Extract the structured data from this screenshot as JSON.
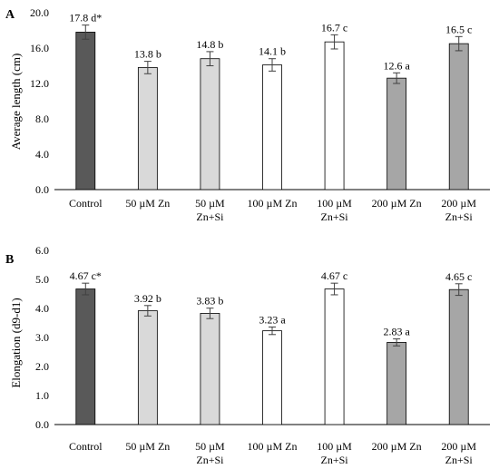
{
  "chart_data": [
    {
      "panel": "A",
      "type": "bar",
      "ylabel": "Average length (cm)",
      "ylim": [
        0,
        20
      ],
      "yticks": [
        "0.0",
        "4.0",
        "8.0",
        "12.0",
        "16.0",
        "20.0"
      ],
      "ytick_values": [
        0,
        4,
        8,
        12,
        16,
        20
      ],
      "categories": [
        [
          "Control"
        ],
        [
          "50 µM Zn"
        ],
        [
          "50 µM",
          "Zn+Si"
        ],
        [
          "100 µM Zn"
        ],
        [
          "100 µM",
          "Zn+Si"
        ],
        [
          "200 µM Zn"
        ],
        [
          "200 µM",
          "Zn+Si"
        ]
      ],
      "values": [
        17.8,
        13.8,
        14.8,
        14.1,
        16.7,
        12.6,
        16.5
      ],
      "errors": [
        0.8,
        0.7,
        0.8,
        0.7,
        0.8,
        0.6,
        0.8
      ],
      "labels": [
        "17.8 d*",
        "13.8 b",
        "14.8 b",
        "14.1 b",
        "16.7 c",
        "12.6 a",
        "16.5 c"
      ],
      "colors": [
        "#595959",
        "#d9d9d9",
        "#d9d9d9",
        "#ffffff",
        "#ffffff",
        "#a6a6a6",
        "#a6a6a6"
      ],
      "grid": false
    },
    {
      "panel": "B",
      "type": "bar",
      "ylabel": "Elongation (d9-d1)",
      "ylim": [
        0,
        6
      ],
      "yticks": [
        "0.0",
        "1.0",
        "2.0",
        "3.0",
        "4.0",
        "5.0",
        "6.0"
      ],
      "ytick_values": [
        0,
        1,
        2,
        3,
        4,
        5,
        6
      ],
      "categories": [
        [
          "Control"
        ],
        [
          "50 µM Zn"
        ],
        [
          "50 µM",
          "Zn+Si"
        ],
        [
          "100 µM Zn"
        ],
        [
          "100 µM",
          "Zn+Si"
        ],
        [
          "200 µM Zn"
        ],
        [
          "200 µM",
          "Zn+Si"
        ]
      ],
      "values": [
        4.67,
        3.92,
        3.83,
        3.23,
        4.67,
        2.83,
        4.65
      ],
      "errors": [
        0.2,
        0.18,
        0.18,
        0.13,
        0.2,
        0.12,
        0.2
      ],
      "labels": [
        "4.67 c*",
        "3.92 b",
        "3.83 b",
        "3.23 a",
        "4.67 c",
        "2.83 a",
        "4.65 c"
      ],
      "colors": [
        "#595959",
        "#d9d9d9",
        "#d9d9d9",
        "#ffffff",
        "#ffffff",
        "#a6a6a6",
        "#a6a6a6"
      ],
      "grid": false
    }
  ]
}
